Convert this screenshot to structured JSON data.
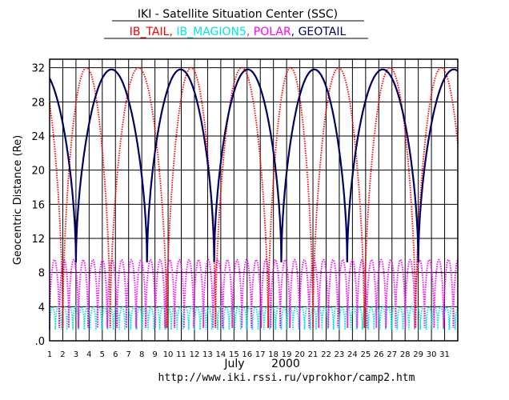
{
  "chart_data": {
    "type": "line",
    "title": "IKI - Satellite Situation Center (SSC)",
    "ylabel": "Geocentric Distance (Re)",
    "xlabel_month": "July",
    "xlabel_year": "2000",
    "url": "http://www.iki.rssi.ru/vprokhor/camp2.htm",
    "xlim": [
      1,
      32
    ],
    "ylim": [
      0,
      33
    ],
    "x_ticks": [
      "1",
      "2",
      "3",
      "4",
      "5",
      "6",
      "7",
      "8",
      "9",
      "10",
      "11",
      "12",
      "13",
      "14",
      "15",
      "16",
      "17",
      "18",
      "19",
      "20",
      "21",
      "22",
      "23",
      "24",
      "25",
      "26",
      "27",
      "28",
      "29",
      "30",
      "31"
    ],
    "y_ticks": [
      {
        "value": 0,
        "label": ".0"
      },
      {
        "value": 4,
        "label": "4"
      },
      {
        "value": 8,
        "label": "8"
      },
      {
        "value": 12,
        "label": "12"
      },
      {
        "value": 16,
        "label": "16"
      },
      {
        "value": 20,
        "label": "20"
      },
      {
        "value": 24,
        "label": "24"
      },
      {
        "value": 28,
        "label": "28"
      },
      {
        "value": 32,
        "label": "32"
      }
    ],
    "grid": true,
    "series": [
      {
        "name": "IB_TAIL",
        "color": "#ff0000",
        "style": "dotted",
        "min": 1.5,
        "max": 32,
        "perigee_days": [
          2.0,
          5.6,
          9.9,
          13.6,
          17.6,
          21.0,
          24.9,
          28.8
        ],
        "start_value": 30.0,
        "end_value": 23.6
      },
      {
        "name": "IB_MAGION5",
        "color": "#00e5e5",
        "style": "dotted",
        "min": 1.3,
        "max": 4.0,
        "period_days": 0.44
      },
      {
        "name": "POLAR",
        "color": "#ff00ff",
        "style": "dotted",
        "min": 1.5,
        "max": 9.5,
        "period_days": 0.73
      },
      {
        "name": "GEOTAIL",
        "color": "#000066",
        "style": "solid",
        "min": 9.2,
        "max": 31.8,
        "perigee_days": [
          3.0,
          8.4,
          13.5,
          18.6,
          23.6,
          29.0
        ],
        "start_value": 30.6,
        "end_value": 32.0
      }
    ]
  }
}
